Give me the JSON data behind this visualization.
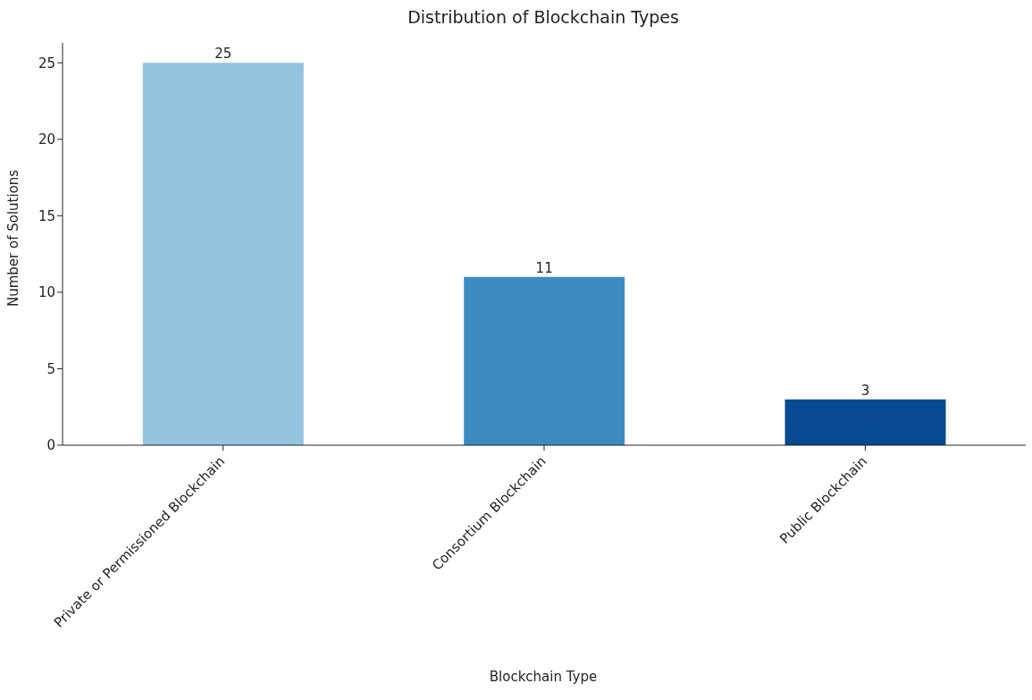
{
  "chart_data": {
    "type": "bar",
    "title": "Distribution of Blockchain Types",
    "xlabel": "Blockchain Type",
    "ylabel": "Number of Solutions",
    "categories": [
      "Private or Permissioned Blockchain",
      "Consortium Blockchain",
      "Public Blockchain"
    ],
    "values": [
      25,
      11,
      3
    ],
    "colors": [
      "#94c4df",
      "#3d8bc2",
      "#084a91"
    ],
    "ylim": [
      0,
      26.3
    ],
    "yticks": [
      0,
      5,
      10,
      15,
      20,
      25
    ],
    "data_labels": true,
    "grid": false
  }
}
